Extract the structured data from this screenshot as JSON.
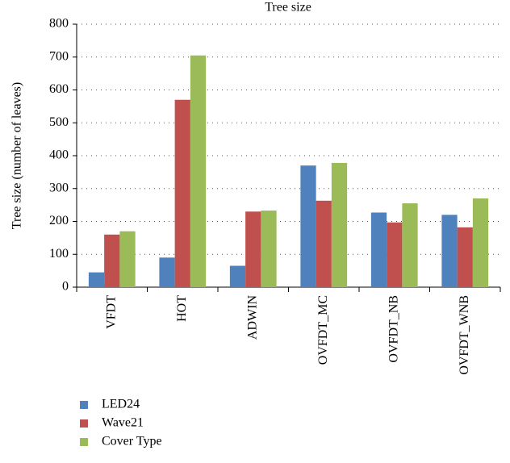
{
  "chart_data": {
    "type": "bar",
    "title": "Tree size",
    "y_label": "Tree size (number of leaves)",
    "categories": [
      "VFDT",
      "HOT",
      "ADWIN",
      "OVFDT_MC",
      "OVFDT_NB",
      "OVFDT_WNB"
    ],
    "series": [
      {
        "name": "LED24",
        "color": "#4f81bd",
        "values": [
          45,
          90,
          65,
          370,
          227,
          220
        ]
      },
      {
        "name": "Wave21",
        "color": "#c0504d",
        "values": [
          160,
          570,
          230,
          263,
          197,
          182
        ]
      },
      {
        "name": "Cover Type",
        "color": "#9bbb59",
        "values": [
          170,
          705,
          233,
          378,
          255,
          270
        ]
      }
    ],
    "ylim": [
      0,
      800
    ],
    "yticks": [
      0,
      100,
      200,
      300,
      400,
      500,
      600,
      700,
      800
    ],
    "grid": true
  }
}
